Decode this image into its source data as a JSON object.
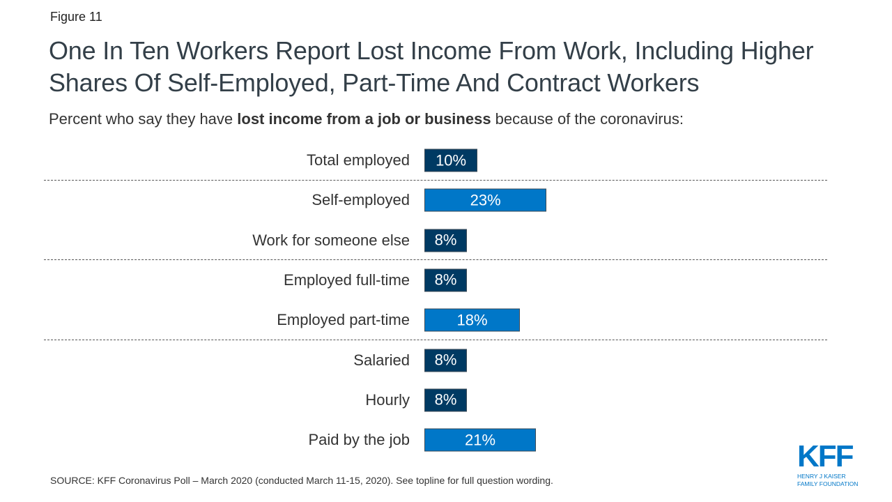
{
  "figure_label": "Figure 11",
  "title": "One In Ten Workers Report Lost Income From Work, Including Higher Shares Of Self-Employed, Part-Time And Contract Workers",
  "subtitle": {
    "pre": "Percent who say they have ",
    "bold": "lost income from a job or business",
    "post": " because of the coronavirus:"
  },
  "source": "SOURCE: KFF Coronavirus Poll – March 2020 (conducted March 11-15, 2020). See topline for full question wording.",
  "logo": {
    "main": "KFF",
    "line1": "HENRY J KAISER",
    "line2": "FAMILY FOUNDATION"
  },
  "colors": {
    "dark": "#003A63",
    "light": "#0077C8"
  },
  "chart_data": {
    "type": "bar",
    "orientation": "horizontal",
    "categories": [
      "Total employed",
      "Self-employed",
      "Work for someone else",
      "Employed full-time",
      "Employed part-time",
      "Salaried",
      "Hourly",
      "Paid by the job"
    ],
    "values": [
      10,
      23,
      8,
      8,
      18,
      8,
      8,
      21
    ],
    "data_labels": [
      "10%",
      "23%",
      "8%",
      "8%",
      "18%",
      "8%",
      "8%",
      "21%"
    ],
    "highlight": [
      false,
      true,
      false,
      false,
      true,
      false,
      false,
      true
    ],
    "separators_after": [
      0,
      2,
      4
    ],
    "unit": "%",
    "xlim": [
      0,
      100
    ]
  }
}
